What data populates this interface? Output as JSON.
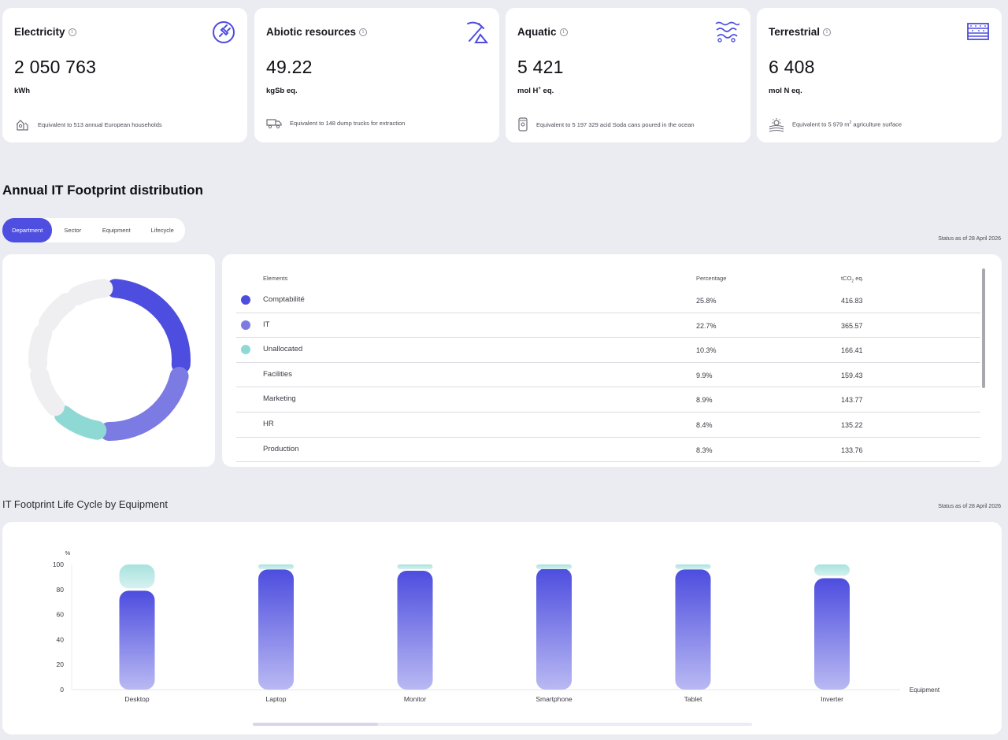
{
  "kpis": [
    {
      "title": "Electricity",
      "value": "2 050 763",
      "unit": "kWh",
      "unit_sup": "",
      "footnote": "Equivalent to 513 annual European households",
      "footnote_sup": "",
      "footnote_tail": "",
      "icon": "plug-icon",
      "footnote_icon": "households-icon"
    },
    {
      "title": "Abiotic resources",
      "value": "49.22",
      "unit": "kgSb eq.",
      "unit_sup": "",
      "footnote": "Equivalent to 148 dump trucks for extraction",
      "footnote_sup": "",
      "footnote_tail": "",
      "icon": "pickaxe-icon",
      "footnote_icon": "dump-truck-icon"
    },
    {
      "title": "Aquatic",
      "value": "5 421",
      "unit": "mol H",
      "unit_sup": "+",
      "unit_tail": " eq.",
      "footnote": "Equivalent to 5 197 329 acid Soda cans poured in the ocean",
      "footnote_sup": "",
      "footnote_tail": "",
      "icon": "water-icon",
      "footnote_icon": "soda-can-icon"
    },
    {
      "title": "Terrestrial",
      "value": "6 408",
      "unit": "mol N eq.",
      "unit_sup": "",
      "footnote": "Equivalent to 5 979 m",
      "footnote_sup": "2",
      "footnote_tail": " agriculture surface",
      "icon": "soil-layers-icon",
      "footnote_icon": "sun-field-icon"
    }
  ],
  "distribution": {
    "title": "Annual IT Footprint distribution",
    "tabs": [
      "Department",
      "Sector",
      "Equipment",
      "Lifecycle"
    ],
    "active_tab": "Department",
    "status": "Status as of 28 April 2026",
    "columns": {
      "elements": "Elements",
      "percentage": "Percentage",
      "tco_prefix": "tCO",
      "tco_sub": "2",
      "tco_suffix": " eq."
    },
    "rows": [
      {
        "name": "Comptabilité",
        "percentage": "25.8%",
        "tco": "416.83",
        "color": "#4d4ddf"
      },
      {
        "name": "IT",
        "percentage": "22.7%",
        "tco": "365.57",
        "color": "#7b7be3"
      },
      {
        "name": "Unallocated",
        "percentage": "10.3%",
        "tco": "166.41",
        "color": "#8fd9d4"
      },
      {
        "name": "Facilities",
        "percentage": "9.9%",
        "tco": "159.43",
        "color": ""
      },
      {
        "name": "Marketing",
        "percentage": "8.9%",
        "tco": "143.77",
        "color": ""
      },
      {
        "name": "HR",
        "percentage": "8.4%",
        "tco": "135.22",
        "color": ""
      },
      {
        "name": "Production",
        "percentage": "8.3%",
        "tco": "133.76",
        "color": ""
      }
    ],
    "donut_inactive_color": "#efeff1"
  },
  "lifecycle": {
    "title": "IT Footprint Life Cycle by Equipment",
    "status": "Status as of 28 April 2026"
  },
  "chart_data": {
    "type": "bar",
    "stacked": true,
    "xlabel": "Equipment",
    "ylabel": "%",
    "ylim": [
      0,
      100
    ],
    "yticks": [
      0,
      20,
      40,
      60,
      80,
      100
    ],
    "categories": [
      "Desktop",
      "Laptop",
      "Monitor",
      "Smartphone",
      "Tablet",
      "Inverter"
    ],
    "series": [
      {
        "values": [
          79,
          96,
          95,
          97,
          96,
          89
        ],
        "color_top": "#4d4ddf",
        "color_bottom": "#b9b9f3"
      },
      {
        "values": [
          21,
          4,
          5,
          3,
          4,
          11
        ],
        "color_top": "#a8e2de",
        "color_bottom": "#d6f2ef"
      }
    ],
    "grid": false
  }
}
